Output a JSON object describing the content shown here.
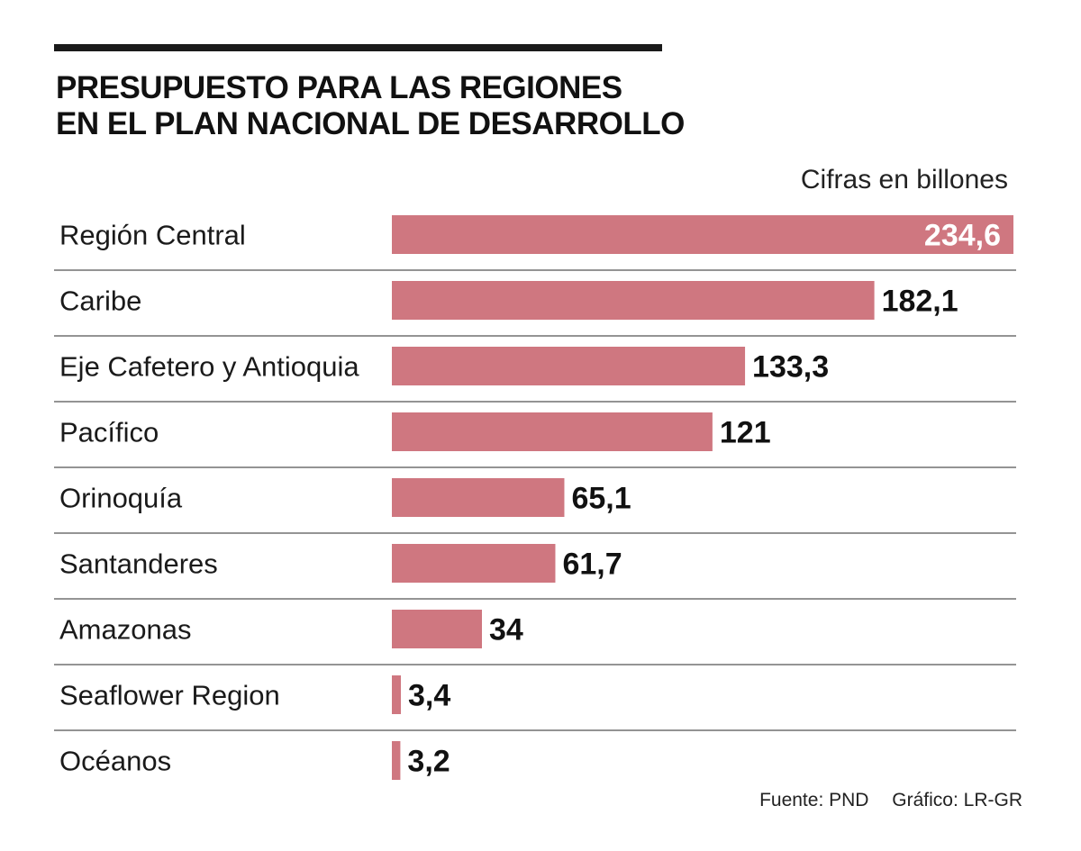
{
  "header": {
    "title_line1": "PRESUPUESTO PARA LAS REGIONES",
    "title_line2": "EN EL PLAN NACIONAL DE DESARROLLO"
  },
  "units": "Cifras en billones",
  "footer": {
    "source": "Fuente: PND",
    "credit": "Gráfico: LR-GR"
  },
  "colors": {
    "bar": "#cf7780",
    "rule": "#1a1a1a",
    "separator": "#555555"
  },
  "chart_data": {
    "type": "bar",
    "orientation": "horizontal",
    "title": "PRESUPUESTO PARA LAS REGIONES EN EL PLAN NACIONAL DE DESARROLLO",
    "units": "Cifras en billones",
    "categories": [
      "Región Central",
      "Caribe",
      "Eje Cafetero y Antioquia",
      "Pacífico",
      "Orinoquía",
      "Santanderes",
      "Amazonas",
      "Seaflower Region",
      "Océanos"
    ],
    "values": [
      234.6,
      182.1,
      133.3,
      121,
      65.1,
      61.7,
      34,
      3.4,
      3.2
    ],
    "value_labels": [
      "234,6",
      "182,1",
      "133,3",
      "121",
      "65,1",
      "61,7",
      "34",
      "3,4",
      "3,2"
    ],
    "xlim": [
      0,
      234.6
    ],
    "grid": false
  }
}
